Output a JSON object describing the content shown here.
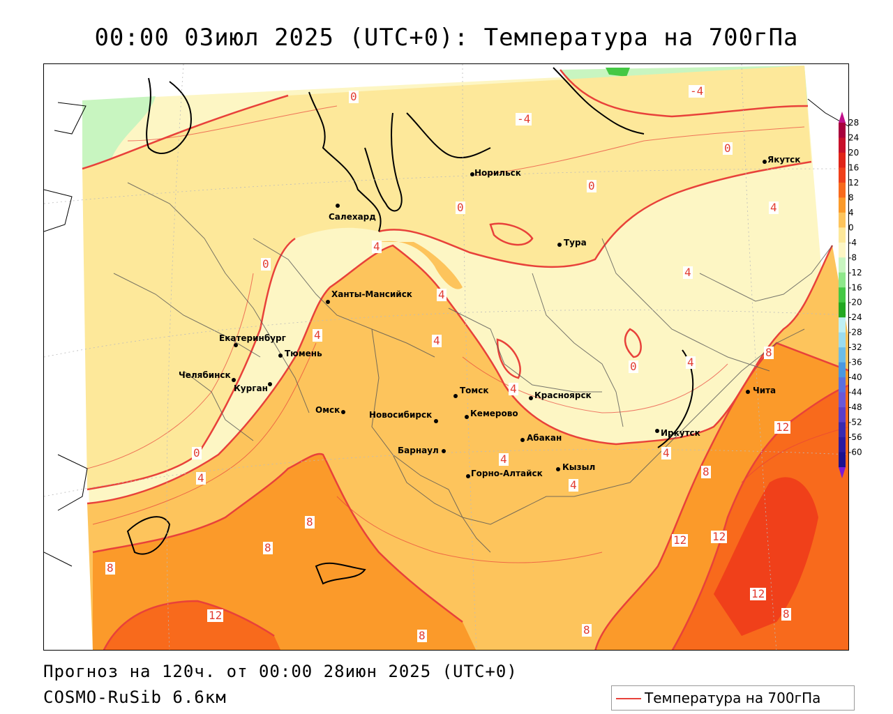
{
  "title": "00:00 03июл 2025 (UTC+0): Температура на 700гПа",
  "footer": {
    "forecast": "Прогноз на 120ч. от 00:00 28июн 2025 (UTC+0)",
    "model": "COSMO-RuSib 6.6км"
  },
  "legend": {
    "label": "Температура на 700гПа",
    "line_color": "#e8413a"
  },
  "colorbar": {
    "labels": [
      "28",
      "24",
      "20",
      "16",
      "12",
      "8",
      "4",
      "0",
      "-4",
      "-8",
      "-12",
      "-16",
      "-20",
      "-24",
      "-28",
      "-32",
      "-36",
      "-40",
      "-44",
      "-48",
      "-52",
      "-56",
      "-60"
    ],
    "colors": [
      "#a8003c",
      "#c8102a",
      "#e02418",
      "#f0401a",
      "#f86a1c",
      "#fb9a2a",
      "#fdc45c",
      "#fde89a",
      "#fdf6c4",
      "#c8f5c0",
      "#8ee88a",
      "#44c844",
      "#22a822",
      "#bff0f4",
      "#9adcf0",
      "#6cbce8",
      "#4a98e0",
      "#5a70e0",
      "#6a58d8",
      "#5a3ec8",
      "#3a2ab0",
      "#2a1aa0",
      "#1a1090"
    ]
  },
  "cities": [
    {
      "name": "Норильск"
    },
    {
      "name": "Якутск"
    },
    {
      "name": "Салехард"
    },
    {
      "name": "Тура"
    },
    {
      "name": "Ханты-Мансийск"
    },
    {
      "name": "Екатеринбург"
    },
    {
      "name": "Тюмень"
    },
    {
      "name": "Челябинск"
    },
    {
      "name": "Курган"
    },
    {
      "name": "Омск"
    },
    {
      "name": "Томск"
    },
    {
      "name": "Красноярск"
    },
    {
      "name": "Новосибирск"
    },
    {
      "name": "Кемерово"
    },
    {
      "name": "Барнаул"
    },
    {
      "name": "Абакан"
    },
    {
      "name": "Горно-Алтайск"
    },
    {
      "name": "Кызыл"
    },
    {
      "name": "Иркутск"
    },
    {
      "name": "Чита"
    }
  ],
  "contour_labels": [
    "0",
    "0",
    "0",
    "0",
    "0",
    "0",
    "-4",
    "-4",
    "4",
    "4",
    "4",
    "4",
    "4",
    "4",
    "4",
    "4",
    "4",
    "4",
    "4",
    "8",
    "8",
    "8",
    "8",
    "8",
    "8",
    "8",
    "8",
    "12",
    "12",
    "12",
    "12",
    "12",
    "4",
    "0"
  ]
}
